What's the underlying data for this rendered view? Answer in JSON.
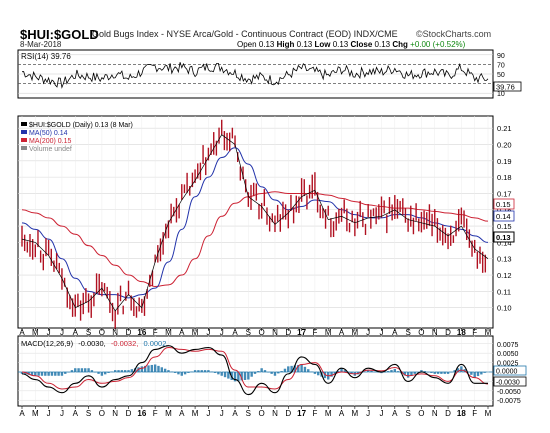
{
  "header": {
    "symbol": "$HUI:$GOLD",
    "description": "Gold Bugs Index - NYSE Arca/Gold - Continuous Contract (EOD)  INDX/CME",
    "brand": "©StockCharts.com",
    "date": "8-Mar-2018",
    "open_label": "Open",
    "open_value": "0.13",
    "high_label": "High",
    "high_value": "0.13",
    "low_label": "Low",
    "low_value": "0.13",
    "close_label": "Close",
    "close_value": "0.13",
    "chg_label": "Chg",
    "chg_value": "+0.00 (+0.52%)"
  },
  "chart_data": [
    {
      "type": "line",
      "panel": "RSI",
      "title": "RSI(14) 39.76",
      "ylim": [
        0,
        100
      ],
      "y_ticks": [
        "90",
        "70",
        "50",
        "30",
        "10"
      ],
      "overbought": 70,
      "oversold": 30,
      "last_value": "39.76",
      "x": [
        "2015-04",
        "2015-05",
        "2015-06",
        "2015-07",
        "2015-08",
        "2015-09",
        "2015-10",
        "2015-11",
        "2015-12",
        "2016-01",
        "2016-02",
        "2016-03",
        "2016-04",
        "2016-05",
        "2016-06",
        "2016-07",
        "2016-08",
        "2016-09",
        "2016-10",
        "2016-11",
        "2016-12",
        "2017-01",
        "2017-02",
        "2017-03",
        "2017-04",
        "2017-05",
        "2017-06",
        "2017-07",
        "2017-08",
        "2017-09",
        "2017-10",
        "2017-11",
        "2017-12",
        "2018-01",
        "2018-02",
        "2018-03"
      ],
      "values": [
        55,
        44,
        38,
        30,
        48,
        45,
        40,
        52,
        40,
        55,
        66,
        62,
        64,
        55,
        66,
        64,
        52,
        40,
        44,
        36,
        48,
        62,
        54,
        46,
        60,
        50,
        56,
        54,
        62,
        47,
        52,
        55,
        46,
        62,
        41,
        40
      ],
      "color": "#000000"
    },
    {
      "type": "line",
      "panel": "Price",
      "legend": [
        {
          "name": "$HUI:$GOLD (Daily) 0.13 (8 Mar)",
          "color": "#000000"
        },
        {
          "name": "MA(50) 0.14",
          "color": "#2233aa"
        },
        {
          "name": "MA(200) 0.15",
          "color": "#cc2233"
        },
        {
          "name": "Volume undef",
          "color": "#888888"
        }
      ],
      "ylim": [
        0.09,
        0.215
      ],
      "y_ticks": [
        "0.21",
        "0.20",
        "0.19",
        "0.18",
        "0.17",
        "0.16",
        "0.15",
        "0.14",
        "0.13",
        "0.12",
        "0.11",
        "0.10"
      ],
      "price_label": "0.15",
      "ma50_label": "0.14",
      "last_label": "0.13",
      "x": [
        "2015-04",
        "2015-05",
        "2015-06",
        "2015-07",
        "2015-08",
        "2015-09",
        "2015-10",
        "2015-11",
        "2015-12",
        "2016-01",
        "2016-02",
        "2016-03",
        "2016-04",
        "2016-05",
        "2016-06",
        "2016-07",
        "2016-08",
        "2016-09",
        "2016-10",
        "2016-11",
        "2016-12",
        "2017-01",
        "2017-02",
        "2017-03",
        "2017-04",
        "2017-05",
        "2017-06",
        "2017-07",
        "2017-08",
        "2017-09",
        "2017-10",
        "2017-11",
        "2017-12",
        "2018-01",
        "2018-02",
        "2018-03"
      ],
      "series": [
        {
          "name": "$HUI:$GOLD",
          "color": "#b01020",
          "values": [
            0.142,
            0.14,
            0.132,
            0.118,
            0.1,
            0.104,
            0.112,
            0.098,
            0.108,
            0.1,
            0.128,
            0.152,
            0.166,
            0.178,
            0.192,
            0.206,
            0.2,
            0.168,
            0.162,
            0.151,
            0.158,
            0.168,
            0.172,
            0.154,
            0.156,
            0.152,
            0.155,
            0.156,
            0.16,
            0.154,
            0.152,
            0.15,
            0.144,
            0.15,
            0.136,
            0.13
          ]
        },
        {
          "name": "MA(50)",
          "color": "#2233aa",
          "values": [
            0.152,
            0.148,
            0.142,
            0.13,
            0.118,
            0.11,
            0.108,
            0.108,
            0.106,
            0.108,
            0.112,
            0.128,
            0.148,
            0.168,
            0.18,
            0.192,
            0.198,
            0.188,
            0.174,
            0.166,
            0.16,
            0.162,
            0.166,
            0.165,
            0.16,
            0.157,
            0.155,
            0.155,
            0.157,
            0.157,
            0.155,
            0.152,
            0.15,
            0.148,
            0.144,
            0.14
          ]
        },
        {
          "name": "MA(200)",
          "color": "#cc2233",
          "values": [
            0.16,
            0.158,
            0.155,
            0.15,
            0.145,
            0.138,
            0.132,
            0.126,
            0.12,
            0.116,
            0.113,
            0.114,
            0.12,
            0.13,
            0.144,
            0.156,
            0.164,
            0.168,
            0.17,
            0.171,
            0.17,
            0.17,
            0.17,
            0.169,
            0.167,
            0.165,
            0.163,
            0.162,
            0.161,
            0.161,
            0.16,
            0.159,
            0.158,
            0.157,
            0.155,
            0.153
          ]
        }
      ]
    },
    {
      "type": "line",
      "panel": "MACD",
      "title": "MACD(12,26,9) -0.0030, -0.0032, 0.0002",
      "title_parts": [
        "MACD(12,26,9)",
        "-0.0030,",
        "-0.0032,",
        "0.0002"
      ],
      "ylim": [
        -0.0085,
        0.0085
      ],
      "y_ticks": [
        "0.0075",
        "0.0050",
        "0.0025",
        "-0.0025",
        "-0.0050",
        "-0.0075"
      ],
      "macd_label": "-0.0030",
      "zero_label": "0.0000",
      "x": [
        "2015-04",
        "2015-05",
        "2015-06",
        "2015-07",
        "2015-08",
        "2015-09",
        "2015-10",
        "2015-11",
        "2015-12",
        "2016-01",
        "2016-02",
        "2016-03",
        "2016-04",
        "2016-05",
        "2016-06",
        "2016-07",
        "2016-08",
        "2016-09",
        "2016-10",
        "2016-11",
        "2016-12",
        "2017-01",
        "2017-02",
        "2017-03",
        "2017-04",
        "2017-05",
        "2017-06",
        "2017-07",
        "2017-08",
        "2017-09",
        "2017-10",
        "2017-11",
        "2017-12",
        "2018-01",
        "2018-02",
        "2018-03"
      ],
      "series": [
        {
          "name": "MACD",
          "color": "#000000",
          "values": [
            -0.0005,
            -0.002,
            -0.004,
            -0.0055,
            -0.003,
            -0.001,
            -0.004,
            -0.002,
            -0.001,
            0.0025,
            0.006,
            0.007,
            0.005,
            0.006,
            0.0065,
            0.0045,
            -0.002,
            -0.006,
            -0.003,
            -0.0055,
            -0.0005,
            0.004,
            0.002,
            -0.003,
            0.001,
            -0.0015,
            0.001,
            0.0,
            0.002,
            -0.0025,
            0.0,
            -0.0015,
            -0.003,
            0.002,
            -0.003,
            -0.003
          ]
        },
        {
          "name": "Signal",
          "color": "#cc2233",
          "values": [
            0.0,
            -0.001,
            -0.003,
            -0.0045,
            -0.004,
            -0.002,
            -0.003,
            -0.0025,
            -0.0015,
            0.001,
            0.004,
            0.0065,
            0.006,
            0.0055,
            0.006,
            0.0055,
            0.0005,
            -0.004,
            -0.004,
            -0.0045,
            -0.002,
            0.002,
            0.0025,
            -0.001,
            0.0,
            -0.0005,
            0.0005,
            0.0003,
            0.0012,
            -0.001,
            -0.0005,
            -0.001,
            -0.0025,
            0.0005,
            -0.0015,
            -0.0032
          ]
        }
      ]
    }
  ],
  "x_axis_labels": [
    "A",
    "M",
    "J",
    "J",
    "A",
    "S",
    "O",
    "N",
    "D",
    "16",
    "F",
    "M",
    "A",
    "M",
    "J",
    "J",
    "A",
    "S",
    "O",
    "N",
    "D",
    "17",
    "F",
    "M",
    "A",
    "M",
    "J",
    "J",
    "A",
    "S",
    "O",
    "N",
    "D",
    "18",
    "F",
    "M"
  ]
}
